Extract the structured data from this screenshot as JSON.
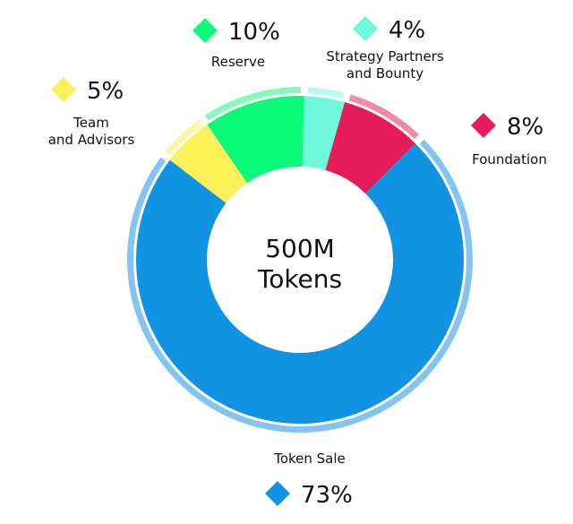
{
  "chart_data": {
    "type": "pie",
    "center_label": [
      "500M",
      "Tokens"
    ],
    "slices": [
      {
        "label": "Token Sale",
        "lines": [
          "Token Sale"
        ],
        "value": 73,
        "value_label": "73%",
        "color": "#1192e3",
        "outer_color": "#83c4f1"
      },
      {
        "label": "Team and Advisors",
        "lines": [
          "Team",
          "and Advisors"
        ],
        "value": 5,
        "value_label": "5%",
        "color": "#fcf158",
        "outer_color": "#fdf6a8"
      },
      {
        "label": "Reserve",
        "lines": [
          "Reserve"
        ],
        "value": 10,
        "value_label": "10%",
        "color": "#0afa79",
        "outer_color": "#86f9bb"
      },
      {
        "label": "Strategy Partners and Bounty",
        "lines": [
          "Strategy Partners",
          "and Bounty"
        ],
        "value": 4,
        "value_label": "4%",
        "color": "#6ff8dc",
        "outer_color": "#b6fbed"
      },
      {
        "label": "Foundation",
        "lines": [
          "Foundation"
        ],
        "value": 8,
        "value_label": "8%",
        "color": "#e41c59",
        "outer_color": "#f08aaa"
      }
    ],
    "legend_placement": "around"
  }
}
